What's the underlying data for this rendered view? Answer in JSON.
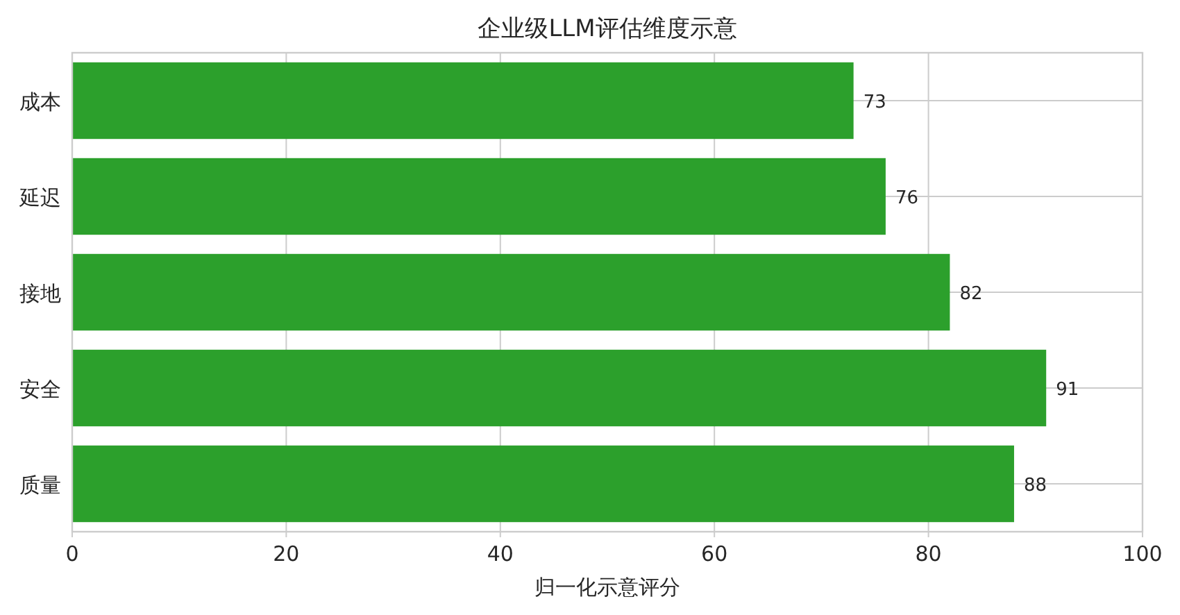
{
  "chart_data": {
    "type": "bar",
    "orientation": "horizontal",
    "title": "企业级LLM评估维度示意",
    "xlabel": "归一化示意评分",
    "categories": [
      "成本",
      "延迟",
      "接地",
      "安全",
      "质量"
    ],
    "values": [
      73,
      76,
      82,
      91,
      88
    ],
    "color": "#2ca02c",
    "xlim": [
      0,
      100
    ],
    "xticks": [
      0,
      20,
      40,
      60,
      80,
      100
    ],
    "grid": true,
    "data_labels": true
  }
}
